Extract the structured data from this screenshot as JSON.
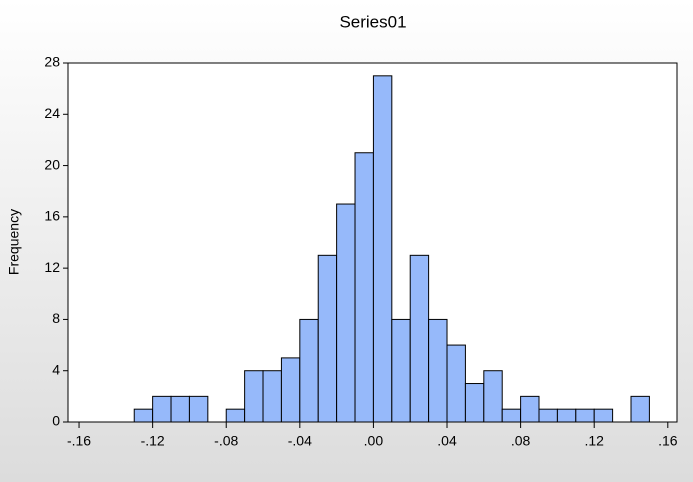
{
  "chart_data": {
    "type": "histogram",
    "title": "Series01",
    "y_label": "Frequency",
    "bins": [
      -0.13,
      -0.12,
      -0.11,
      -0.1,
      -0.09,
      -0.08,
      -0.07,
      -0.06,
      -0.05,
      -0.04,
      -0.03,
      -0.02,
      -0.01,
      0.0,
      0.01,
      0.02,
      0.03,
      0.04,
      0.05,
      0.06,
      0.07,
      0.08,
      0.09,
      0.1,
      0.11,
      0.12,
      0.13,
      0.14,
      0.15
    ],
    "values": [
      1,
      2,
      2,
      2,
      0,
      1,
      4,
      4,
      5,
      8,
      13,
      17,
      21,
      27,
      8,
      13,
      8,
      6,
      3,
      4,
      1,
      2,
      1,
      1,
      1,
      1,
      0,
      2
    ],
    "color": "#96b9fa",
    "xlim": [
      -0.166,
      0.165
    ],
    "xticks": [
      {
        "value": -0.16,
        "label": "-.16"
      },
      {
        "value": -0.12,
        "label": "-.12"
      },
      {
        "value": -0.08,
        "label": "-.08"
      },
      {
        "value": -0.04,
        "label": "-.04"
      },
      {
        "value": 0,
        "label": ".00"
      },
      {
        "value": 0.04,
        "label": ".04"
      },
      {
        "value": 0.08,
        "label": ".08"
      },
      {
        "value": 0.12,
        "label": ".12"
      },
      {
        "value": 0.16,
        "label": ".16"
      }
    ],
    "ylim": [
      0,
      28
    ],
    "yticks": [
      0,
      4,
      8,
      12,
      16,
      20,
      24,
      28
    ],
    "grid": false
  }
}
